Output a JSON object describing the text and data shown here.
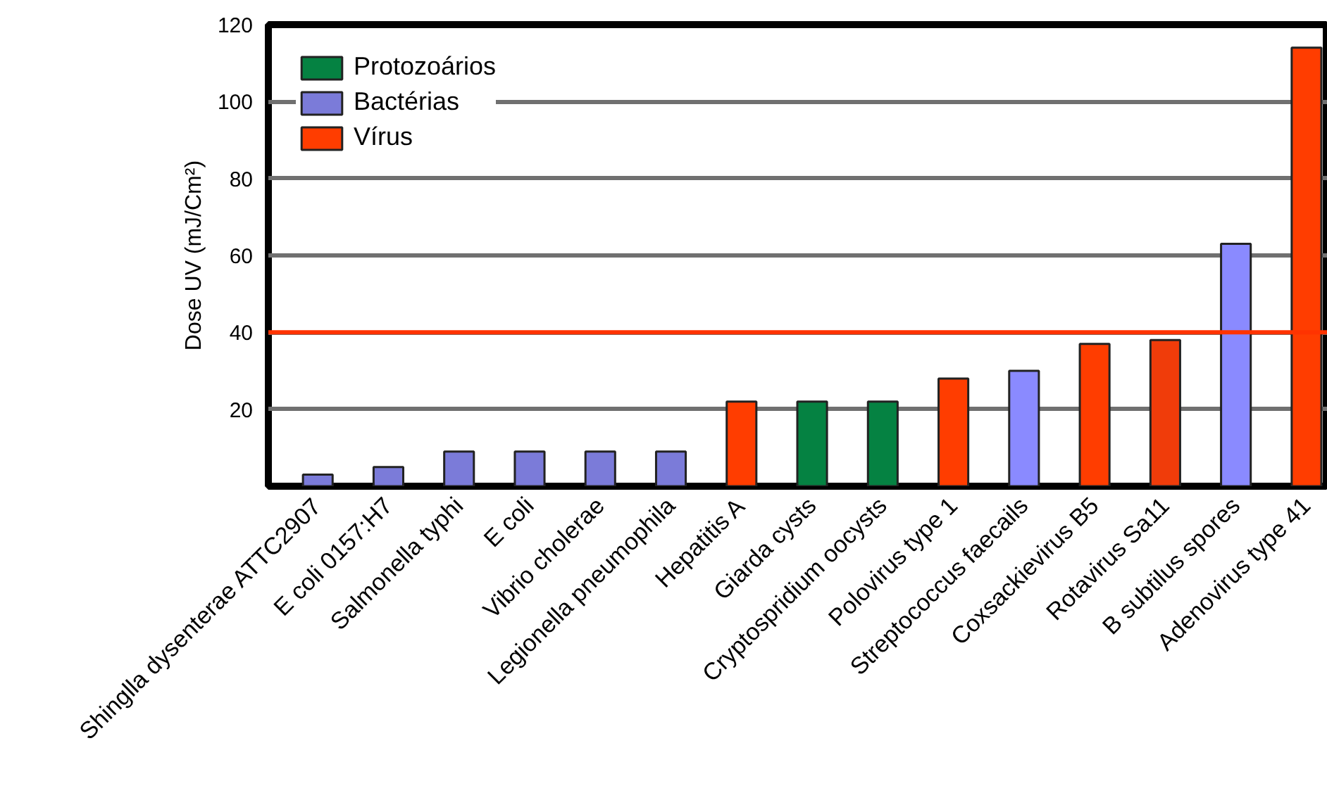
{
  "chart_data": {
    "type": "bar",
    "ylabel": "Dose UV (mJ/Cm²)",
    "categories": [
      "Shinglla dysenterae ATTC2907",
      "E coli 0157:H7",
      "Salmonella typhi",
      "E coli",
      "Vibrio cholerae",
      "Legionella pneumophila",
      "Hepatitis A",
      "Giarda cysts",
      "Cryptospridium oocysts",
      "Polovirus type 1",
      "Streptococcus faecails",
      "Coxsackievirus B5",
      "Rotavirus Sa11",
      "B subtilus spores",
      "Adenovirus type 41"
    ],
    "series": [
      {
        "name": "Protozoários",
        "color": "#058242",
        "values": [
          null,
          null,
          null,
          null,
          null,
          null,
          null,
          22,
          22,
          null,
          null,
          null,
          null,
          null,
          null
        ]
      },
      {
        "name": "Bactérias",
        "color": "#7b7bd9",
        "colors": [
          null,
          null,
          null,
          null,
          null,
          null,
          null,
          null,
          null,
          null,
          "#8a8aff",
          null,
          null,
          "#8a8aff",
          null
        ],
        "values": [
          3,
          5,
          9,
          9,
          9,
          9,
          null,
          null,
          null,
          null,
          30,
          null,
          null,
          63,
          null
        ]
      },
      {
        "name": "Vírus",
        "color": "#ff3d00",
        "colors": [
          null,
          null,
          null,
          null,
          null,
          null,
          null,
          null,
          null,
          null,
          null,
          null,
          "#f03c0a",
          null,
          null
        ],
        "values": [
          null,
          null,
          null,
          null,
          null,
          null,
          22,
          null,
          null,
          28,
          null,
          37,
          38,
          null,
          114
        ]
      }
    ],
    "ylim": [
      0,
      120
    ],
    "yticks": [
      20,
      40,
      60,
      80,
      100,
      120
    ],
    "grid": "y",
    "ref_lines": [
      {
        "axis": "y",
        "value": 40,
        "color": "#ff3300"
      }
    ],
    "legend": "top left"
  }
}
